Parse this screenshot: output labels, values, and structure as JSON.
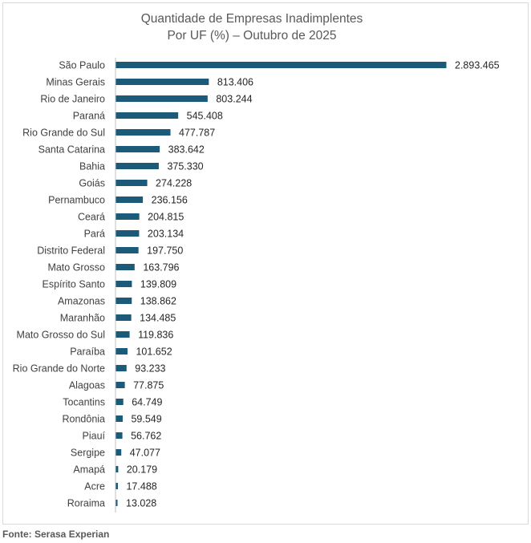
{
  "colors": {
    "bar": "#1b5a78",
    "axis": "#bfbfbf"
  },
  "source": "Fonte: Serasa Experian",
  "chart_data": {
    "type": "bar",
    "orientation": "horizontal",
    "title": "Quantidade de Empresas Inadimplentes",
    "subtitle": "Por UF (%) – Outubro de 2025",
    "xlabel": "",
    "ylabel": "",
    "grid": false,
    "xlim": [
      0,
      2893465
    ],
    "categories": [
      "São Paulo",
      "Minas Gerais",
      "Rio de Janeiro",
      "Paraná",
      "Rio Grande do Sul",
      "Santa Catarina",
      "Bahia",
      "Goiás",
      "Pernambuco",
      "Ceará",
      "Pará",
      "Distrito Federal",
      "Mato Grosso",
      "Espírito Santo",
      "Amazonas",
      "Maranhão",
      "Mato Grosso do Sul",
      "Paraíba",
      "Rio Grande do Norte",
      "Alagoas",
      "Tocantins",
      "Rondônia",
      "Piauí",
      "Sergipe",
      "Amapá",
      "Acre",
      "Roraima"
    ],
    "values": [
      2893465,
      813406,
      803244,
      545408,
      477787,
      383642,
      375330,
      274228,
      236156,
      204815,
      203134,
      197750,
      163796,
      139809,
      138862,
      134485,
      119836,
      101652,
      93233,
      77875,
      64749,
      59549,
      56762,
      47077,
      20179,
      17488,
      13028
    ],
    "value_labels": [
      "2.893.465",
      "813.406",
      "803.244",
      "545.408",
      "477.787",
      "383.642",
      "375.330",
      "274.228",
      "236.156",
      "204.815",
      "203.134",
      "197.750",
      "163.796",
      "139.809",
      "138.862",
      "134.485",
      "119.836",
      "101.652",
      "93.233",
      "77.875",
      "64.749",
      "59.549",
      "56.762",
      "47.077",
      "20.179",
      "17.488",
      "13.028"
    ]
  }
}
